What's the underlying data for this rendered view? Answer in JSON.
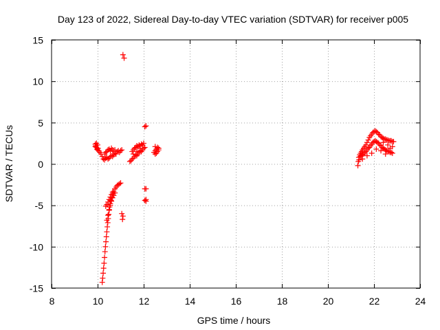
{
  "chart_data": {
    "type": "scatter",
    "title": "Day 123 of 2022, Sidereal Day-to-day VTEC variation (SDTVAR) for receiver p005",
    "xlabel": "GPS time / hours",
    "ylabel": "SDTVAR / TECUs",
    "xlim": [
      8,
      24
    ],
    "ylim": [
      -15,
      15
    ],
    "xticks": [
      8,
      10,
      12,
      14,
      16,
      18,
      20,
      22,
      24
    ],
    "yticks": [
      -15,
      -10,
      -5,
      0,
      5,
      10,
      15
    ],
    "xtick_labels": [
      "8",
      "10",
      "12",
      "14",
      "16",
      "18",
      "20",
      "22",
      "24"
    ],
    "ytick_labels": [
      "-15",
      "-10",
      "-5",
      "0",
      "5",
      "10",
      "15"
    ],
    "grid": true,
    "marker": "+",
    "marker_color": "#ff0000",
    "series": [
      {
        "name": "SDTVAR",
        "points": [
          [
            9.9,
            2.4
          ],
          [
            9.92,
            2.2
          ],
          [
            9.95,
            2.0
          ],
          [
            9.97,
            1.8
          ],
          [
            10.0,
            1.7
          ],
          [
            10.02,
            1.9
          ],
          [
            9.9,
            2.1
          ],
          [
            9.95,
            2.5
          ],
          [
            10.0,
            2.3
          ],
          [
            10.05,
            1.6
          ],
          [
            10.1,
            1.4
          ],
          [
            10.15,
            1.2
          ],
          [
            10.2,
            0.9
          ],
          [
            10.25,
            0.6
          ],
          [
            10.3,
            0.5
          ],
          [
            10.35,
            0.7
          ],
          [
            10.4,
            0.8
          ],
          [
            10.45,
            0.6
          ],
          [
            10.5,
            0.7
          ],
          [
            10.55,
            0.9
          ],
          [
            10.6,
            1.0
          ],
          [
            10.65,
            0.9
          ],
          [
            10.7,
            1.1
          ],
          [
            10.75,
            1.3
          ],
          [
            10.8,
            1.2
          ],
          [
            10.85,
            1.5
          ],
          [
            10.9,
            1.6
          ],
          [
            10.95,
            1.4
          ],
          [
            11.0,
            1.6
          ],
          [
            11.05,
            1.7
          ],
          [
            10.3,
            1.2
          ],
          [
            10.35,
            1.4
          ],
          [
            10.4,
            1.5
          ],
          [
            10.45,
            1.7
          ],
          [
            10.5,
            1.8
          ],
          [
            10.55,
            1.6
          ],
          [
            10.6,
            1.9
          ],
          [
            10.65,
            1.7
          ],
          [
            10.7,
            1.5
          ],
          [
            10.75,
            1.7
          ],
          [
            11.4,
            0.3
          ],
          [
            11.45,
            0.4
          ],
          [
            11.5,
            0.6
          ],
          [
            11.55,
            0.7
          ],
          [
            11.6,
            0.9
          ],
          [
            11.65,
            1.1
          ],
          [
            11.7,
            1.0
          ],
          [
            11.75,
            1.2
          ],
          [
            11.8,
            1.4
          ],
          [
            11.85,
            1.6
          ],
          [
            11.9,
            1.5
          ],
          [
            11.95,
            1.7
          ],
          [
            12.0,
            1.9
          ],
          [
            12.05,
            2.0
          ],
          [
            11.5,
            1.5
          ],
          [
            11.55,
            1.7
          ],
          [
            11.6,
            1.9
          ],
          [
            11.65,
            2.0
          ],
          [
            11.7,
            2.2
          ],
          [
            11.75,
            2.1
          ],
          [
            11.8,
            2.3
          ],
          [
            11.85,
            2.2
          ],
          [
            11.9,
            2.4
          ],
          [
            11.95,
            2.3
          ],
          [
            12.0,
            2.5
          ],
          [
            11.55,
            1.2
          ],
          [
            11.7,
            1.5
          ],
          [
            11.85,
            1.9
          ],
          [
            12.1,
            4.6
          ],
          [
            12.05,
            4.5
          ],
          [
            12.45,
            1.4
          ],
          [
            12.5,
            1.6
          ],
          [
            12.55,
            1.8
          ],
          [
            12.6,
            2.0
          ],
          [
            12.5,
            1.2
          ],
          [
            12.55,
            1.3
          ],
          [
            12.6,
            1.5
          ],
          [
            12.65,
            1.7
          ],
          [
            12.65,
            1.9
          ],
          [
            12.5,
            2.1
          ],
          [
            11.1,
            13.2
          ],
          [
            11.15,
            12.8
          ],
          [
            10.2,
            -14.3
          ],
          [
            10.22,
            -13.8
          ],
          [
            10.24,
            -13.2
          ],
          [
            10.26,
            -12.6
          ],
          [
            10.28,
            -12.0
          ],
          [
            10.3,
            -11.3
          ],
          [
            10.32,
            -10.6
          ],
          [
            10.34,
            -10.0
          ],
          [
            10.36,
            -9.4
          ],
          [
            10.38,
            -8.8
          ],
          [
            10.4,
            -8.2
          ],
          [
            10.42,
            -7.6
          ],
          [
            10.44,
            -7.1
          ],
          [
            10.46,
            -6.6
          ],
          [
            10.48,
            -6.1
          ],
          [
            10.5,
            -5.6
          ],
          [
            10.52,
            -5.2
          ],
          [
            10.55,
            -4.8
          ],
          [
            10.58,
            -4.4
          ],
          [
            10.62,
            -4.0
          ],
          [
            10.66,
            -3.6
          ],
          [
            10.7,
            -3.3
          ],
          [
            10.75,
            -3.0
          ],
          [
            10.8,
            -2.8
          ],
          [
            10.85,
            -2.6
          ],
          [
            10.9,
            -2.5
          ],
          [
            10.95,
            -2.4
          ],
          [
            11.0,
            -2.3
          ],
          [
            10.35,
            -5.1
          ],
          [
            10.4,
            -4.9
          ],
          [
            10.45,
            -4.6
          ],
          [
            10.5,
            -4.3
          ],
          [
            10.55,
            -4.0
          ],
          [
            10.6,
            -3.7
          ],
          [
            10.65,
            -3.4
          ],
          [
            10.55,
            -5.0
          ],
          [
            10.6,
            -4.5
          ],
          [
            10.65,
            -4.1
          ],
          [
            10.7,
            -3.8
          ],
          [
            10.75,
            -3.5
          ],
          [
            10.5,
            -5.5
          ],
          [
            10.45,
            -6.2
          ],
          [
            10.4,
            -6.8
          ],
          [
            11.05,
            -6.0
          ],
          [
            11.1,
            -6.3
          ],
          [
            11.08,
            -6.7
          ],
          [
            12.05,
            -3.0
          ],
          [
            12.1,
            -3.0
          ],
          [
            12.05,
            -4.4
          ],
          [
            12.1,
            -4.5
          ],
          [
            12.1,
            -4.3
          ],
          [
            21.3,
            -0.2
          ],
          [
            21.32,
            0.3
          ],
          [
            21.34,
            0.8
          ],
          [
            21.38,
            1.1
          ],
          [
            21.42,
            1.3
          ],
          [
            21.46,
            1.5
          ],
          [
            21.5,
            1.7
          ],
          [
            21.55,
            1.9
          ],
          [
            21.6,
            2.1
          ],
          [
            21.65,
            2.3
          ],
          [
            21.7,
            2.6
          ],
          [
            21.75,
            2.9
          ],
          [
            21.8,
            3.2
          ],
          [
            21.85,
            3.4
          ],
          [
            21.9,
            3.6
          ],
          [
            21.95,
            3.8
          ],
          [
            22.0,
            3.9
          ],
          [
            22.05,
            4.0
          ],
          [
            22.1,
            3.9
          ],
          [
            22.15,
            3.8
          ],
          [
            22.2,
            3.6
          ],
          [
            22.25,
            3.5
          ],
          [
            22.3,
            3.3
          ],
          [
            22.35,
            3.2
          ],
          [
            22.4,
            3.1
          ],
          [
            22.45,
            3.0
          ],
          [
            22.5,
            3.0
          ],
          [
            22.55,
            2.9
          ],
          [
            22.6,
            2.9
          ],
          [
            22.65,
            2.8
          ],
          [
            22.7,
            2.8
          ],
          [
            22.75,
            2.8
          ],
          [
            22.8,
            2.7
          ],
          [
            22.85,
            2.7
          ],
          [
            21.4,
            0.9
          ],
          [
            21.45,
            1.0
          ],
          [
            21.5,
            1.1
          ],
          [
            21.55,
            1.2
          ],
          [
            21.6,
            1.4
          ],
          [
            21.65,
            1.5
          ],
          [
            21.7,
            1.7
          ],
          [
            21.75,
            1.9
          ],
          [
            21.8,
            2.0
          ],
          [
            21.85,
            2.2
          ],
          [
            21.9,
            2.4
          ],
          [
            21.95,
            2.6
          ],
          [
            22.0,
            2.7
          ],
          [
            22.05,
            2.8
          ],
          [
            22.1,
            2.7
          ],
          [
            22.15,
            2.6
          ],
          [
            22.2,
            2.5
          ],
          [
            22.25,
            2.3
          ],
          [
            22.3,
            2.2
          ],
          [
            22.35,
            2.0
          ],
          [
            22.4,
            1.9
          ],
          [
            22.45,
            1.8
          ],
          [
            22.5,
            1.7
          ],
          [
            22.55,
            1.6
          ],
          [
            22.6,
            1.5
          ],
          [
            22.65,
            1.5
          ],
          [
            22.7,
            1.4
          ],
          [
            22.75,
            1.4
          ],
          [
            22.8,
            1.3
          ],
          [
            21.35,
            0.5
          ],
          [
            21.5,
            0.6
          ],
          [
            21.7,
            1.0
          ],
          [
            21.9,
            1.3
          ],
          [
            22.1,
            1.8
          ],
          [
            22.3,
            1.6
          ],
          [
            22.5,
            1.2
          ],
          [
            22.7,
            1.9
          ],
          [
            22.8,
            2.1
          ],
          [
            22.6,
            2.3
          ],
          [
            22.4,
            2.6
          ]
        ]
      }
    ]
  }
}
